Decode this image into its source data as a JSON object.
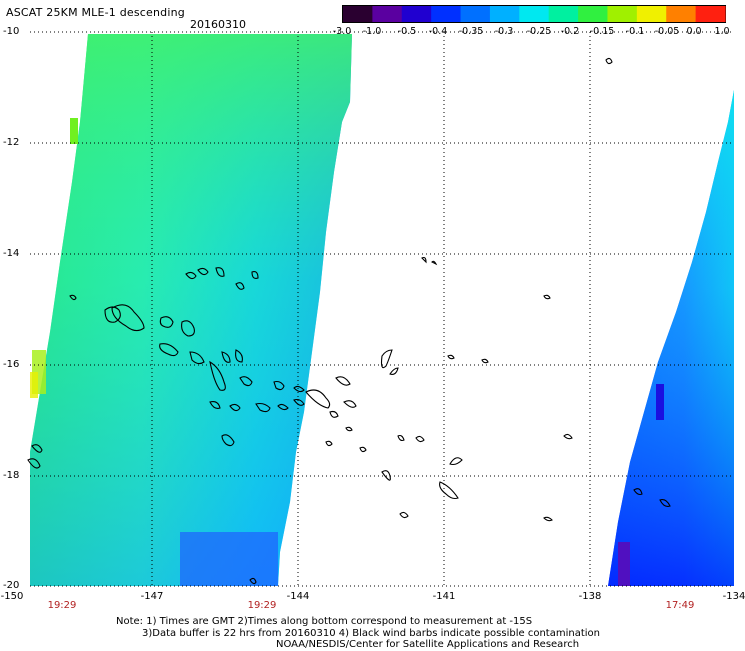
{
  "header": {
    "title": "ASCAT 25KM MLE-1 descending",
    "date": "20160310"
  },
  "colorbar": {
    "labels": [
      "-3.0",
      "-1.0",
      "-0.5",
      "-0.4",
      "-0.35",
      "-0.3",
      "-0.25",
      "-0.2",
      "-0.15",
      "-0.1",
      "-0.05",
      "0.0",
      "1.0"
    ],
    "colors": [
      "#2a0030",
      "#5a00a0",
      "#2000d0",
      "#0030ff",
      "#0070ff",
      "#00b0ff",
      "#00e8f0",
      "#00f0a0",
      "#30f040",
      "#a0f000",
      "#f0f000",
      "#ff8000",
      "#ff2010"
    ]
  },
  "map": {
    "lon_min": -150,
    "lon_max": -134,
    "lat_min": -20,
    "lat_max": -10,
    "x_ticks": [
      "-150",
      "-147",
      "-144",
      "-141",
      "-138",
      "-134"
    ],
    "y_ticks": [
      "-10",
      "-12",
      "-14",
      "-16",
      "-18",
      "-20"
    ],
    "pass_times": [
      "19:29",
      "19:29",
      "17:49"
    ]
  },
  "notes": {
    "line1": "Note: 1) Times are GMT 2)Times along bottom correspond to measurement at -15S",
    "line2": "3)Data buffer is 22 hrs from 20160310 4) Black wind barbs indicate possible contamination",
    "line3": "NOAA/NESDIS/Center for Satellite Applications and Research"
  }
}
